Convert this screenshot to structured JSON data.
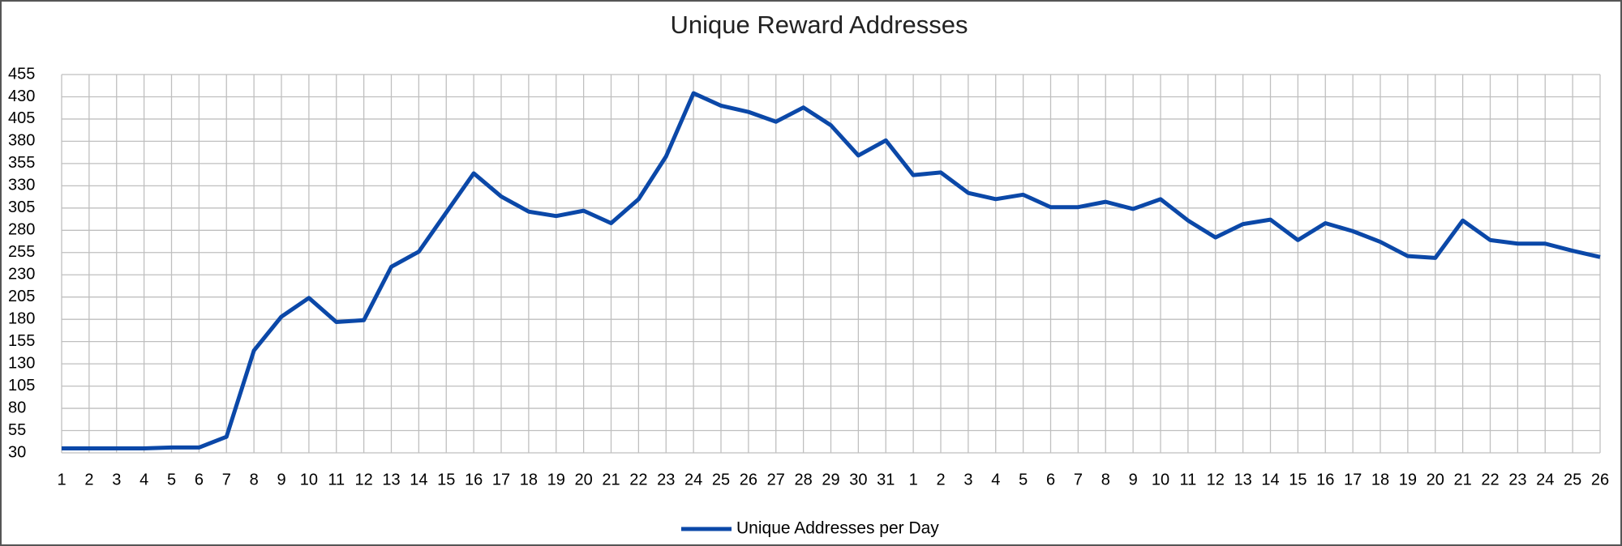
{
  "chart_data": {
    "type": "line",
    "title": "Unique Reward Addresses",
    "categories": [
      "1",
      "2",
      "3",
      "4",
      "5",
      "6",
      "7",
      "8",
      "9",
      "10",
      "11",
      "12",
      "13",
      "14",
      "15",
      "16",
      "17",
      "18",
      "19",
      "20",
      "21",
      "22",
      "23",
      "24",
      "25",
      "26",
      "27",
      "28",
      "29",
      "30",
      "31",
      "1",
      "2",
      "3",
      "4",
      "5",
      "6",
      "7",
      "8",
      "9",
      "10",
      "11",
      "12",
      "13",
      "14",
      "15",
      "16",
      "17",
      "18",
      "19",
      "20",
      "21",
      "22",
      "23",
      "24",
      "25",
      "26"
    ],
    "series": [
      {
        "name": "Unique Addresses per Day",
        "color": "#0b48a8",
        "values": [
          35,
          35,
          35,
          35,
          36,
          36,
          48,
          145,
          183,
          204,
          177,
          179,
          239,
          256,
          300,
          344,
          318,
          301,
          296,
          302,
          288,
          315,
          363,
          434,
          420,
          413,
          402,
          418,
          398,
          364,
          381,
          342,
          345,
          322,
          315,
          320,
          306,
          306,
          312,
          304,
          315,
          291,
          272,
          287,
          292,
          269,
          288,
          279,
          267,
          251,
          249,
          291,
          269,
          265,
          265,
          257,
          250
        ]
      }
    ],
    "ylim": [
      30,
      455
    ],
    "yticks": [
      30,
      55,
      80,
      105,
      130,
      155,
      180,
      205,
      230,
      255,
      280,
      305,
      330,
      355,
      380,
      405,
      430,
      455
    ],
    "grid": true,
    "legend": "bottom"
  }
}
